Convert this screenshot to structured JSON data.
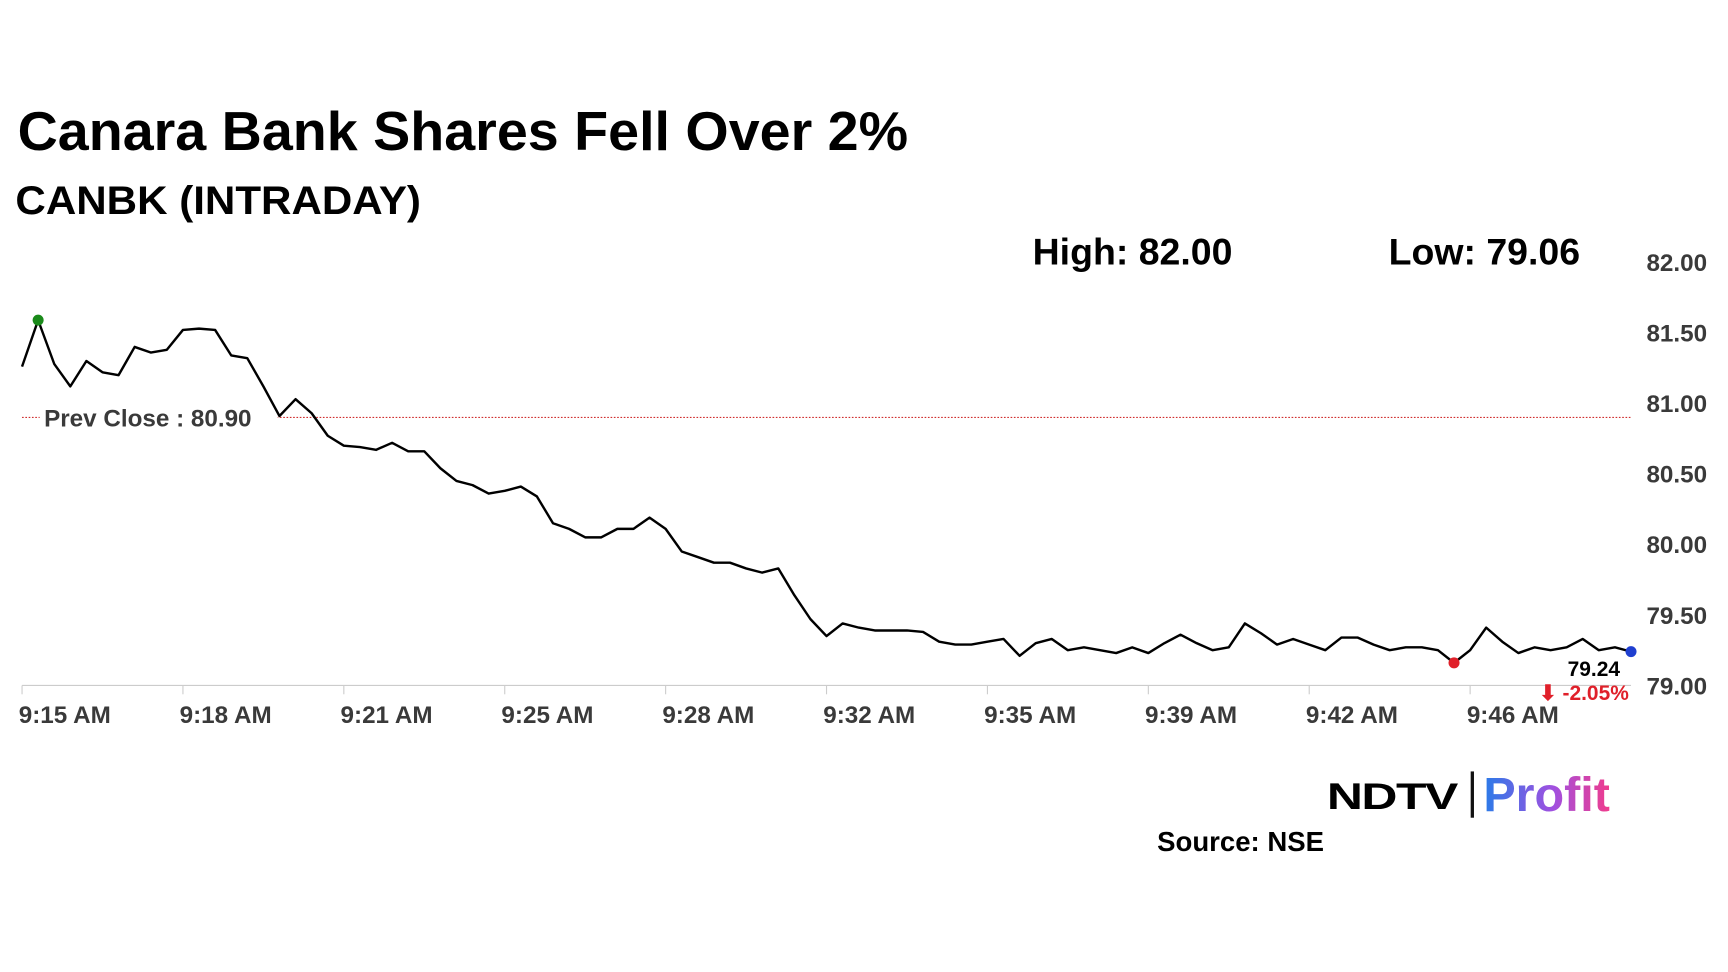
{
  "chart_data": {
    "type": "line",
    "title": "Canara Bank Shares Fell Over 2%",
    "subtitle": "CANBK (INTRADAY)",
    "high_text": "High: 82.00",
    "low_text": "Low: 79.06",
    "prev_close": {
      "value": 80.9,
      "label": "Prev Close : 80.90",
      "color": "#d03030"
    },
    "change_text": "⬇ -2.05%",
    "source": "Source: NSE",
    "logo": {
      "brand": "NDTV",
      "product": "Profit"
    },
    "color": "#000000",
    "high_color": "#1a8a1a",
    "low_color": "#e0202a",
    "last_color": "#1f3fd0",
    "categories": [
      "9:15 AM",
      null,
      null,
      null,
      null,
      null,
      null,
      null,
      null,
      null,
      "9:18 AM",
      null,
      null,
      null,
      null,
      null,
      null,
      null,
      null,
      null,
      "9:21 AM",
      null,
      null,
      null,
      null,
      null,
      null,
      null,
      null,
      null,
      "9:25 AM",
      null,
      null,
      null,
      null,
      null,
      null,
      null,
      null,
      null,
      "9:28 AM",
      null,
      null,
      null,
      null,
      null,
      null,
      null,
      null,
      null,
      "9:32 AM",
      null,
      null,
      null,
      null,
      null,
      null,
      null,
      null,
      null,
      "9:35 AM",
      null,
      null,
      null,
      null,
      null,
      null,
      null,
      null,
      null,
      "9:39 AM",
      null,
      null,
      null,
      null,
      null,
      null,
      null,
      null,
      null,
      "9:42 AM",
      null,
      null,
      null,
      null,
      null,
      null,
      null,
      null,
      null,
      "9:46 AM",
      null,
      null,
      null,
      null,
      null,
      null,
      null,
      null,
      null,
      null
    ],
    "values": [
      81.26,
      81.59,
      81.28,
      81.12,
      81.3,
      81.22,
      81.2,
      81.4,
      81.36,
      81.38,
      81.52,
      81.53,
      81.52,
      81.34,
      81.32,
      81.12,
      80.91,
      81.03,
      80.93,
      80.77,
      80.7,
      80.69,
      80.67,
      80.72,
      80.66,
      80.66,
      80.54,
      80.45,
      80.42,
      80.36,
      80.38,
      80.41,
      80.34,
      80.15,
      80.11,
      80.05,
      80.05,
      80.11,
      80.11,
      80.19,
      80.11,
      79.95,
      79.91,
      79.87,
      79.87,
      79.83,
      79.8,
      79.83,
      79.64,
      79.47,
      79.35,
      79.44,
      79.41,
      79.39,
      79.39,
      79.39,
      79.38,
      79.31,
      79.29,
      79.29,
      79.31,
      79.33,
      79.21,
      79.3,
      79.33,
      79.25,
      79.27,
      79.25,
      79.23,
      79.27,
      79.23,
      79.3,
      79.36,
      79.3,
      79.25,
      79.27,
      79.44,
      79.37,
      79.29,
      79.33,
      79.29,
      79.25,
      79.34,
      79.34,
      79.29,
      79.25,
      79.27,
      79.27,
      79.25,
      79.16,
      79.25,
      79.41,
      79.31,
      79.23,
      79.27,
      79.25,
      79.27,
      79.33,
      79.25,
      79.27,
      79.24
    ],
    "last_value_label": "79.24",
    "ylim": [
      79,
      82
    ],
    "yticks": [
      {
        "value": 79,
        "label": "79.00"
      },
      {
        "value": 79.5,
        "label": "79.50"
      },
      {
        "value": 80,
        "label": "80.00"
      },
      {
        "value": 80.5,
        "label": "80.50"
      },
      {
        "value": 81,
        "label": "81.00"
      },
      {
        "value": 81.5,
        "label": "81.50"
      },
      {
        "value": 82,
        "label": "82.00"
      }
    ]
  }
}
